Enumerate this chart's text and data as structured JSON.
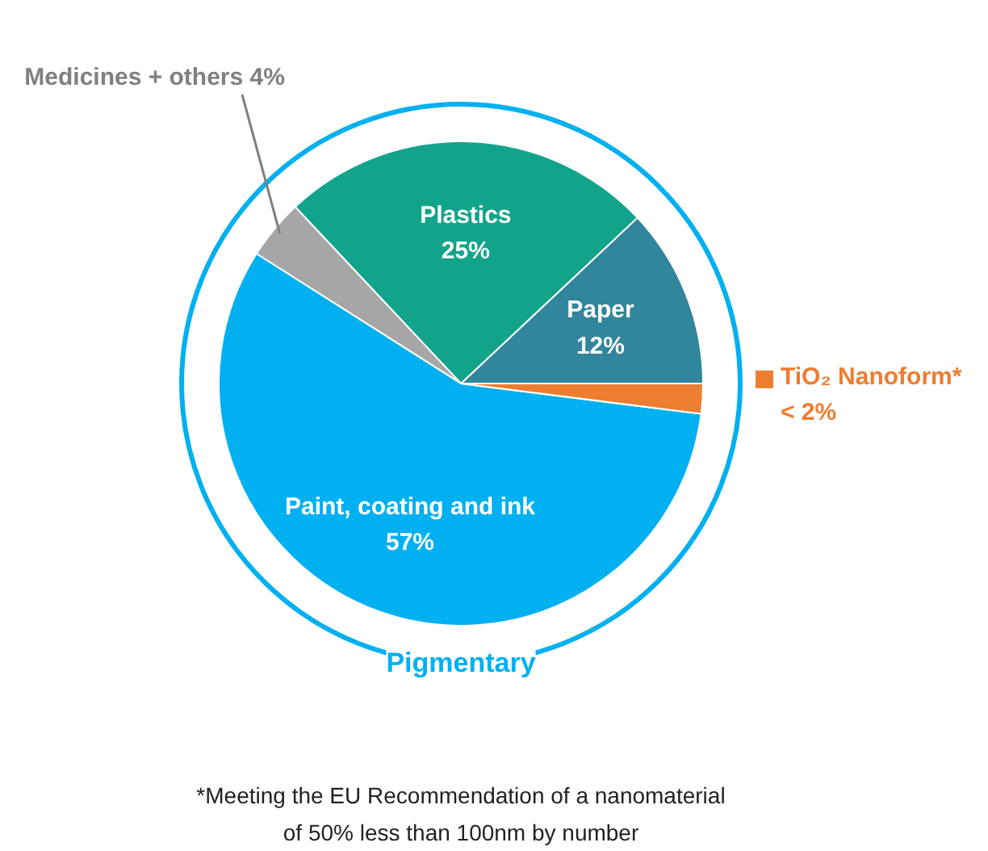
{
  "chart_data": {
    "type": "pie",
    "categories": [
      "Paper",
      "Plastics",
      "Medicines + others",
      "Paint, coating and ink",
      "TiO₂ Nanoform*"
    ],
    "values": [
      12,
      25,
      4,
      57,
      2
    ],
    "value_labels": [
      "12%",
      "25%",
      "4%",
      "57%",
      "< 2%"
    ],
    "colors": [
      "#31859c",
      "#12a38b",
      "#a6a6a6",
      "#00b0f0",
      "#ed7d31"
    ],
    "annotations": [
      "Pigmentary",
      "*Meeting the EU Recommendation of a nanomaterial",
      "of 50% less than 100nm by number"
    ]
  }
}
